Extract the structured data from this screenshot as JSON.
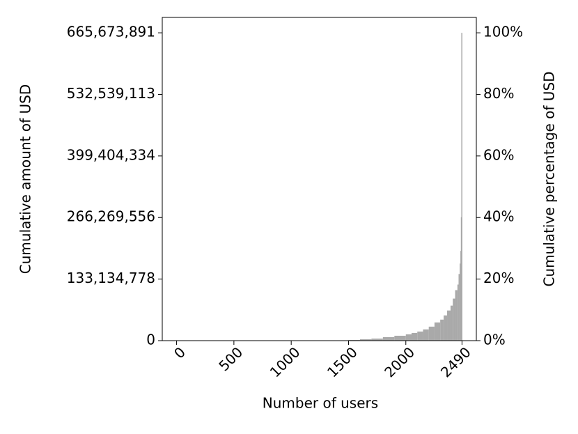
{
  "chart_data": {
    "type": "bar",
    "x_label": "Number of users",
    "y_label": "Cumulative amount of USD",
    "y2_label": "Cumulative percentage of USD",
    "color": "#a9a9a9",
    "x": [
      1500,
      1600,
      1700,
      1800,
      1900,
      2000,
      2050,
      2100,
      2150,
      2200,
      2250,
      2300,
      2330,
      2360,
      2390,
      2410,
      2430,
      2450,
      2460,
      2470,
      2476,
      2480,
      2484,
      2490
    ],
    "values": [
      760000,
      1500000,
      3000000,
      4500000,
      7600000,
      10600000,
      13600000,
      16700000,
      19700000,
      24300000,
      30300000,
      39400000,
      45500000,
      54600000,
      65200000,
      75800000,
      91000000,
      109200000,
      121300000,
      144100000,
      166800000,
      194100000,
      266900000,
      665673891
    ],
    "xlim": [
      -125,
      2615
    ],
    "xticks": [
      0,
      500,
      1000,
      1500,
      2000,
      2490
    ],
    "ylim": [
      0,
      698957586
    ],
    "yticks": [
      0,
      {
        "value": 133134778,
        "label": "133,134,778"
      },
      {
        "value": 266269556,
        "label": "266,269,556"
      },
      {
        "value": 399404334,
        "label": "399,404,334"
      },
      {
        "value": 532539113,
        "label": "532,539,113"
      },
      {
        "value": 665673891,
        "label": "665,673,891"
      }
    ],
    "y2lim": [
      0,
      105
    ],
    "y2ticks": [
      {
        "value": 0,
        "label": "0%"
      },
      {
        "value": 20,
        "label": "20%"
      },
      {
        "value": 40,
        "label": "40%"
      },
      {
        "value": 60,
        "label": "60%"
      },
      {
        "value": 80,
        "label": "80%"
      },
      {
        "value": 100,
        "label": "100%"
      }
    ]
  }
}
